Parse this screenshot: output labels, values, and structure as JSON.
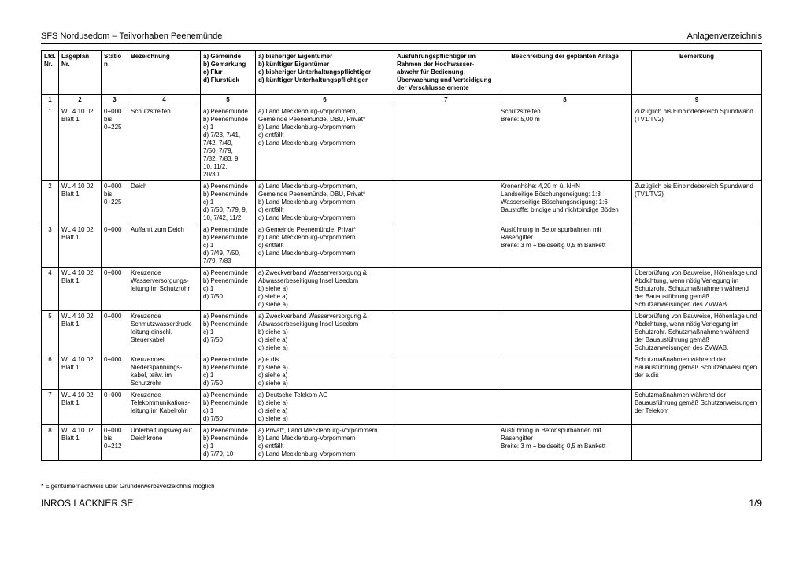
{
  "header": {
    "left": "SFS Nordusedom – Teilvorhaben Peenemünde",
    "right": "Anlagenverzeichnis"
  },
  "columns": {
    "c1": "Lfd.\nNr.",
    "c2": "Lageplan\nNr.",
    "c3": "Station",
    "c4": "Bezeichnung",
    "c5": "a) Gemeinde\nb) Gemarkung\nc) Flur\nd) Flurstück",
    "c6": "a) bisheriger Eigentümer\nb) künftiger Eigentümer\nc) bisheriger Unterhaltungspflichtiger\nd) künftiger Unterhaltungspflichtiger",
    "c7": "Ausführungspflichtiger im Rahmen der Hochwasser-abwehr für Bedienung, Überwachung und Verteidigung der Verschlusselemente",
    "c8": "Beschreibung der geplanten Anlage",
    "c9": "Bemerkung"
  },
  "numrow": [
    "1",
    "2",
    "3",
    "4",
    "5",
    "6",
    "7",
    "8",
    "9"
  ],
  "rows": [
    {
      "n": "1",
      "lageplan": "WL 4 10 02\nBlatt 1",
      "station": "0+000\nbis\n0+225",
      "bez": "Schutzstreifen",
      "gemeinde": "a) Peenemünde\nb) Peenemünde\nc) 1\nd) 7/23, 7/41,\n    7/42, 7/49,\n    7/50, 7/79,\n    7/82, 7/83, 9,\n    10, 11/2,\n    20/30",
      "eigent": "a) Land Mecklenburg-Vorpommern,\n    Gemeinde Peenemünde, DBU, Privat*\nb) Land Mecklenburg-Vorpommern\nc) entfällt\nd) Land Mecklenburg-Vorpommern",
      "ausf": "",
      "beschr": "Schutzstreifen\nBreite: 5,00 m",
      "bem": "Zuzüglich bis Einbindebereich Spundwand (TV1/TV2)"
    },
    {
      "n": "2",
      "lageplan": "WL 4 10 02\nBlatt 1",
      "station": "0+000\nbis\n0+225",
      "bez": "Deich",
      "gemeinde": "a) Peenemünde\nb) Peenemünde\nc) 1\nd) 7/50, 7/79, 9,\n    10, 7/42, 11/2",
      "eigent": "a) Land Mecklenburg-Vorpommern,\n    Gemeinde Peenemünde, DBU, Privat*\nb) Land Mecklenburg-Vorpommern\nc) entfällt\nd) Land Mecklenburg-Vorpommern",
      "ausf": "",
      "beschr": "Kronenhöhe: 4,20 m ü. NHN\nLandseitige Böschungsneigung: 1:3\nWasserseitige Böschungsneigung: 1:6\nBaustoffe: bindige und nichtbindige Böden",
      "bem": "Zuzüglich bis Einbindebereich Spundwand (TV1/TV2)"
    },
    {
      "n": "3",
      "lageplan": "WL 4 10 02\nBlatt 1",
      "station": "0+000",
      "bez": "Auffahrt zum Deich",
      "gemeinde": "a) Peenemünde\nb) Peenemünde\nc) 1\nd) 7/49, 7/50,\n    7/79, 7/83",
      "eigent": "a) Gemeinde Peenemünde, Privat*\nb) Land Mecklenburg-Vorpommern\nc) entfällt\nd) Land Mecklenburg-Vorpommern",
      "ausf": "",
      "beschr": "Ausführung in Betonspurbahnen mit Rasengitter\nBreite: 3 m + beidseitig 0,5 m Bankett",
      "bem": ""
    },
    {
      "n": "4",
      "lageplan": "WL 4 10 02\nBlatt 1",
      "station": "0+000",
      "bez": "Kreuzende Wasserversorgungs-leitung im Schutzrohr",
      "gemeinde": "a) Peenemünde\nb) Peenemünde\nc) 1\nd) 7/50",
      "eigent": "a) Zweckverband Wasserversorgung &\n    Abwasserbeseitigung Insel Usedom\nb) siehe a)\nc) siehe a)\nd) siehe a)",
      "ausf": "",
      "beschr": "",
      "bem": "Überprüfung von Bauweise, Höhenlage und Abdichtung, wenn nötig Verlegung im Schutzrohr. Schutzmaßnahmen während der Bauausführung gemäß Schutzanweisungen des ZVWAB."
    },
    {
      "n": "5",
      "lageplan": "WL 4 10 02\nBlatt 1",
      "station": "0+000",
      "bez": "Kreuzende Schmutzwasserdruck-leitung einschl. Steuerkabel",
      "gemeinde": "a) Peenemünde\nb) Peenemünde\nc) 1\nd) 7/50",
      "eigent": "a) Zweckverband Wasserversorgung &\n    Abwasserbeseitigung Insel Usedom\nb) siehe a)\nc) siehe a)\nd) siehe a)",
      "ausf": "",
      "beschr": "",
      "bem": "Überprüfung von Bauweise, Höhenlage und Abdichtung, wenn nötig Verlegung im Schutzrohr. Schutzmaßnahmen während der Bauausführung gemäß Schutzanweisungen des ZVWAB."
    },
    {
      "n": "6",
      "lageplan": "WL 4 10 02\nBlatt 1",
      "station": "0+000",
      "bez": "Kreuzendes Niederspannungs-kabel, teilw. im Schutzrohr",
      "gemeinde": "a) Peenemünde\nb) Peenemünde\nc) 1\nd) 7/50",
      "eigent": "a) e.dis\nb) siehe a)\nc) siehe a)\nd) siehe a)",
      "ausf": "",
      "beschr": "",
      "bem": "Schutzmaßnahmen während der Bauausführung gemäß Schutzanweisungen der e.dis"
    },
    {
      "n": "7",
      "lageplan": "WL 4 10 02\nBlatt 1",
      "station": "0+000",
      "bez": "Kreuzende Telekommunikations-leitung im Kabelrohr",
      "gemeinde": "a) Peenemünde\nb) Peenemünde\nc) 1\nd) 7/50",
      "eigent": "a) Deutsche Telekom AG\nb) siehe a)\nc) siehe a)\nd) siehe a)",
      "ausf": "",
      "beschr": "",
      "bem": "Schutzmaßnahmen während der Bauausführung gemäß Schutzanweisungen der Telekom"
    },
    {
      "n": "8",
      "lageplan": "WL 4 10 02\nBlatt 1",
      "station": "0+000\nbis\n0+212",
      "bez": "Unterhaltungsweg auf Deichkrone",
      "gemeinde": "a) Peenemünde\nb) Peenemünde\nc) 1\nd) 7/79, 10",
      "eigent": "a) Privat*, Land Mecklenburg-Vorpommern\nb) Land Mecklenburg-Vorpommern\nc) entfällt\nd) Land Mecklenburg-Vorpommern",
      "ausf": "",
      "beschr": "Ausführung in Betonspurbahnen mit Rasengitter\nBreite: 3 m + beidseitig 0,5 m Bankett",
      "bem": ""
    }
  ],
  "footnote": "* Eigentümernachweis über Grunderwerbsverzeichnis möglich",
  "footer": {
    "left": "INROS LACKNER SE",
    "right": "1/9"
  }
}
